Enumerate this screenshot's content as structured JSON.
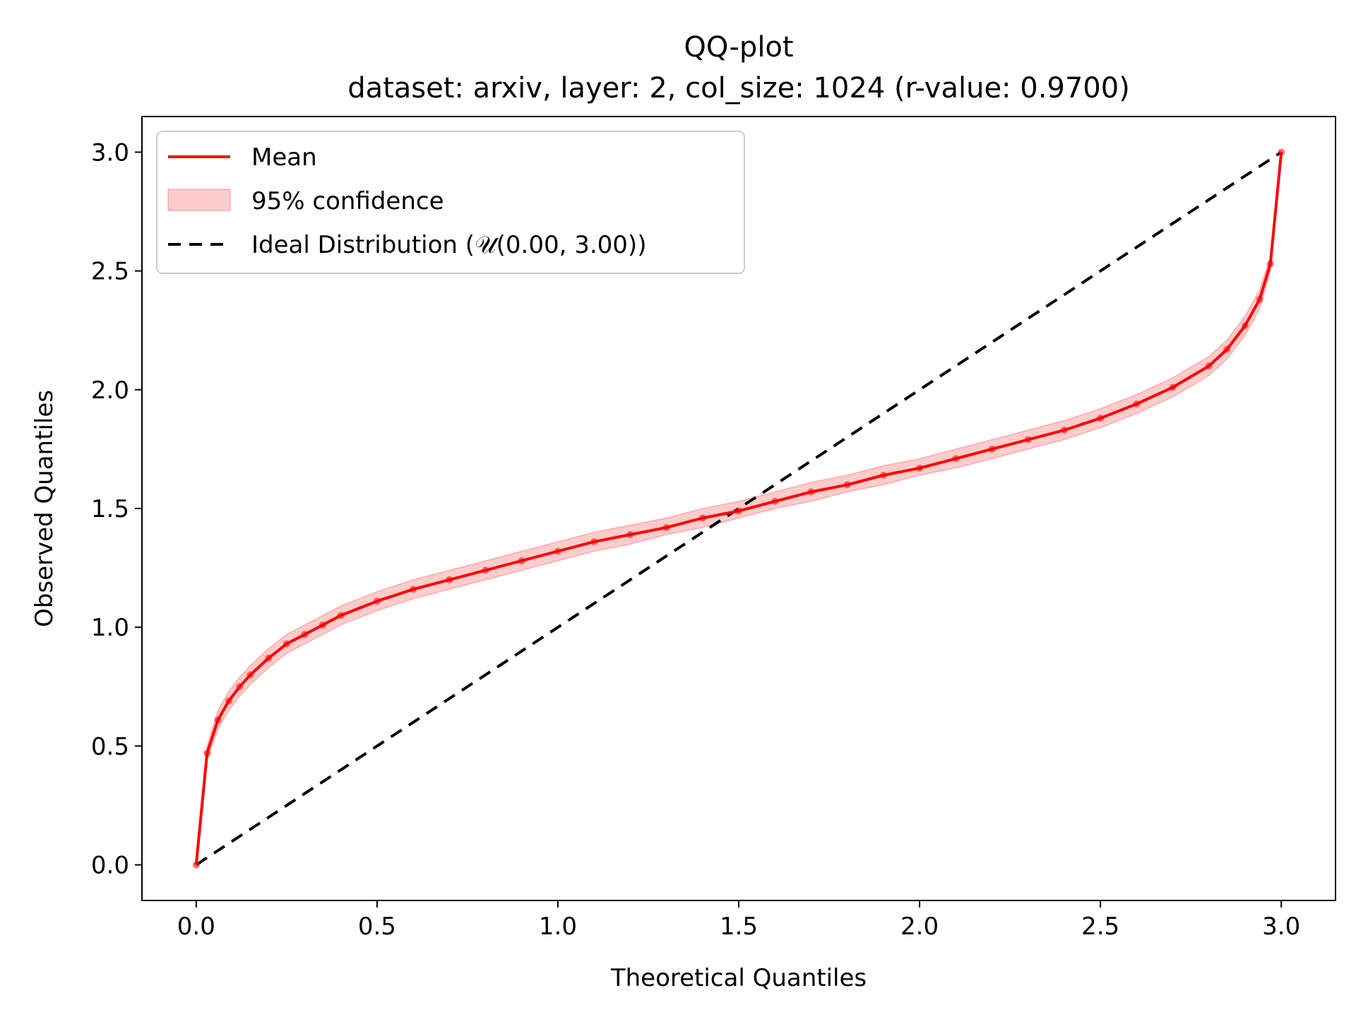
{
  "chart_data": {
    "type": "line",
    "title": "QQ-plot",
    "subtitle": "dataset: arxiv, layer: 2, col_size: 1024 (r-value: 0.9700)",
    "xlabel": "Theoretical Quantiles",
    "ylabel": "Observed Quantiles",
    "xlim": [
      -0.15,
      3.15
    ],
    "ylim": [
      -0.15,
      3.15
    ],
    "xticks": [
      0.0,
      0.5,
      1.0,
      1.5,
      2.0,
      2.5,
      3.0
    ],
    "yticks": [
      0.0,
      0.5,
      1.0,
      1.5,
      2.0,
      2.5,
      3.0
    ],
    "xtick_labels": [
      "0.0",
      "0.5",
      "1.0",
      "1.5",
      "2.0",
      "2.5",
      "3.0"
    ],
    "ytick_labels": [
      "0.0",
      "0.5",
      "1.0",
      "1.5",
      "2.0",
      "2.5",
      "3.0"
    ],
    "grid": false,
    "legend_position": "top-left",
    "colors": {
      "mean": "#ff0000",
      "band": "#ffcccc",
      "ideal": "#000000"
    },
    "series": [
      {
        "name": "Mean",
        "style": "line-with-markers",
        "x": [
          0.0,
          0.03,
          0.06,
          0.09,
          0.12,
          0.15,
          0.2,
          0.25,
          0.3,
          0.35,
          0.4,
          0.5,
          0.6,
          0.7,
          0.8,
          0.9,
          1.0,
          1.1,
          1.2,
          1.3,
          1.4,
          1.5,
          1.6,
          1.7,
          1.8,
          1.9,
          2.0,
          2.1,
          2.2,
          2.3,
          2.4,
          2.5,
          2.6,
          2.7,
          2.8,
          2.85,
          2.9,
          2.94,
          2.97,
          3.0
        ],
        "y": [
          0.0,
          0.47,
          0.61,
          0.69,
          0.75,
          0.8,
          0.87,
          0.93,
          0.97,
          1.01,
          1.05,
          1.11,
          1.16,
          1.2,
          1.24,
          1.28,
          1.32,
          1.36,
          1.39,
          1.42,
          1.46,
          1.49,
          1.53,
          1.57,
          1.6,
          1.64,
          1.67,
          1.71,
          1.75,
          1.79,
          1.83,
          1.88,
          1.94,
          2.01,
          2.1,
          2.17,
          2.27,
          2.38,
          2.53,
          3.0
        ]
      },
      {
        "name": "95% confidence",
        "style": "band",
        "x": [
          0.0,
          0.03,
          0.06,
          0.09,
          0.12,
          0.15,
          0.2,
          0.25,
          0.3,
          0.35,
          0.4,
          0.5,
          0.6,
          0.7,
          0.8,
          0.9,
          1.0,
          1.1,
          1.2,
          1.3,
          1.4,
          1.5,
          1.6,
          1.7,
          1.8,
          1.9,
          2.0,
          2.1,
          2.2,
          2.3,
          2.4,
          2.5,
          2.6,
          2.7,
          2.8,
          2.85,
          2.9,
          2.94,
          2.97,
          3.0
        ],
        "y_lower": [
          0.0,
          0.44,
          0.57,
          0.65,
          0.71,
          0.76,
          0.83,
          0.89,
          0.93,
          0.97,
          1.01,
          1.07,
          1.12,
          1.16,
          1.2,
          1.24,
          1.28,
          1.32,
          1.35,
          1.39,
          1.42,
          1.46,
          1.5,
          1.53,
          1.57,
          1.6,
          1.64,
          1.67,
          1.71,
          1.75,
          1.79,
          1.84,
          1.9,
          1.97,
          2.06,
          2.13,
          2.23,
          2.34,
          2.5,
          3.0
        ],
        "y_upper": [
          0.0,
          0.5,
          0.65,
          0.73,
          0.79,
          0.84,
          0.91,
          0.97,
          1.01,
          1.05,
          1.09,
          1.15,
          1.2,
          1.24,
          1.28,
          1.32,
          1.36,
          1.4,
          1.43,
          1.46,
          1.5,
          1.53,
          1.57,
          1.61,
          1.64,
          1.68,
          1.71,
          1.75,
          1.79,
          1.83,
          1.87,
          1.92,
          1.98,
          2.05,
          2.14,
          2.21,
          2.31,
          2.42,
          2.56,
          3.0
        ]
      },
      {
        "name": "Ideal Distribution (𝒰(0.00, 3.00))",
        "style": "dashed-line",
        "x": [
          0.0,
          3.0
        ],
        "y": [
          0.0,
          3.0
        ]
      }
    ]
  }
}
